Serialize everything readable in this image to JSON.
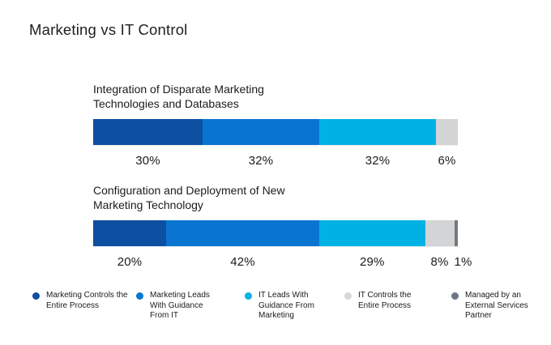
{
  "page_title": "Marketing vs IT Control",
  "chart_data": {
    "type": "bar",
    "orientation": "horizontal-stacked",
    "unit": "%",
    "xlim": [
      0,
      100
    ],
    "grid": false,
    "legend_position": "bottom",
    "series_names": [
      "Marketing Controls the Entire Process",
      "Marketing Leads With Guidance From IT",
      "IT Leads With Guidance From Marketing",
      "IT Controls the Entire Process",
      "Managed by an External Services Partner"
    ],
    "series_colors": [
      "#0d4fa0",
      "#0a75d1",
      "#00b2e3",
      "#d3d4d5",
      "#75797d"
    ],
    "charts": [
      {
        "title": "Integration of Disparate Marketing Technologies and Databases",
        "values": [
          30,
          32,
          32,
          6
        ],
        "labels": [
          "30%",
          "32%",
          "32%",
          "6%"
        ]
      },
      {
        "title": "Configuration and Deployment of New Marketing Technology",
        "values": [
          20,
          42,
          29,
          8,
          1
        ],
        "labels": [
          "20%",
          "42%",
          "29%",
          "8%",
          "1%"
        ]
      }
    ]
  },
  "legend": {
    "items": [
      {
        "label": "Marketing Controls the Entire Process",
        "color": "#0d4fa0"
      },
      {
        "label": "Marketing Leads With Guidance From IT",
        "color": "#0a75d1"
      },
      {
        "label": "IT Leads With Guidance From Marketing",
        "color": "#00b2e3"
      },
      {
        "label": "IT Controls the Entire Process",
        "color": "#d6d7d8"
      },
      {
        "label": "Managed by an External Services Partner",
        "color": "#6d7881"
      }
    ]
  }
}
